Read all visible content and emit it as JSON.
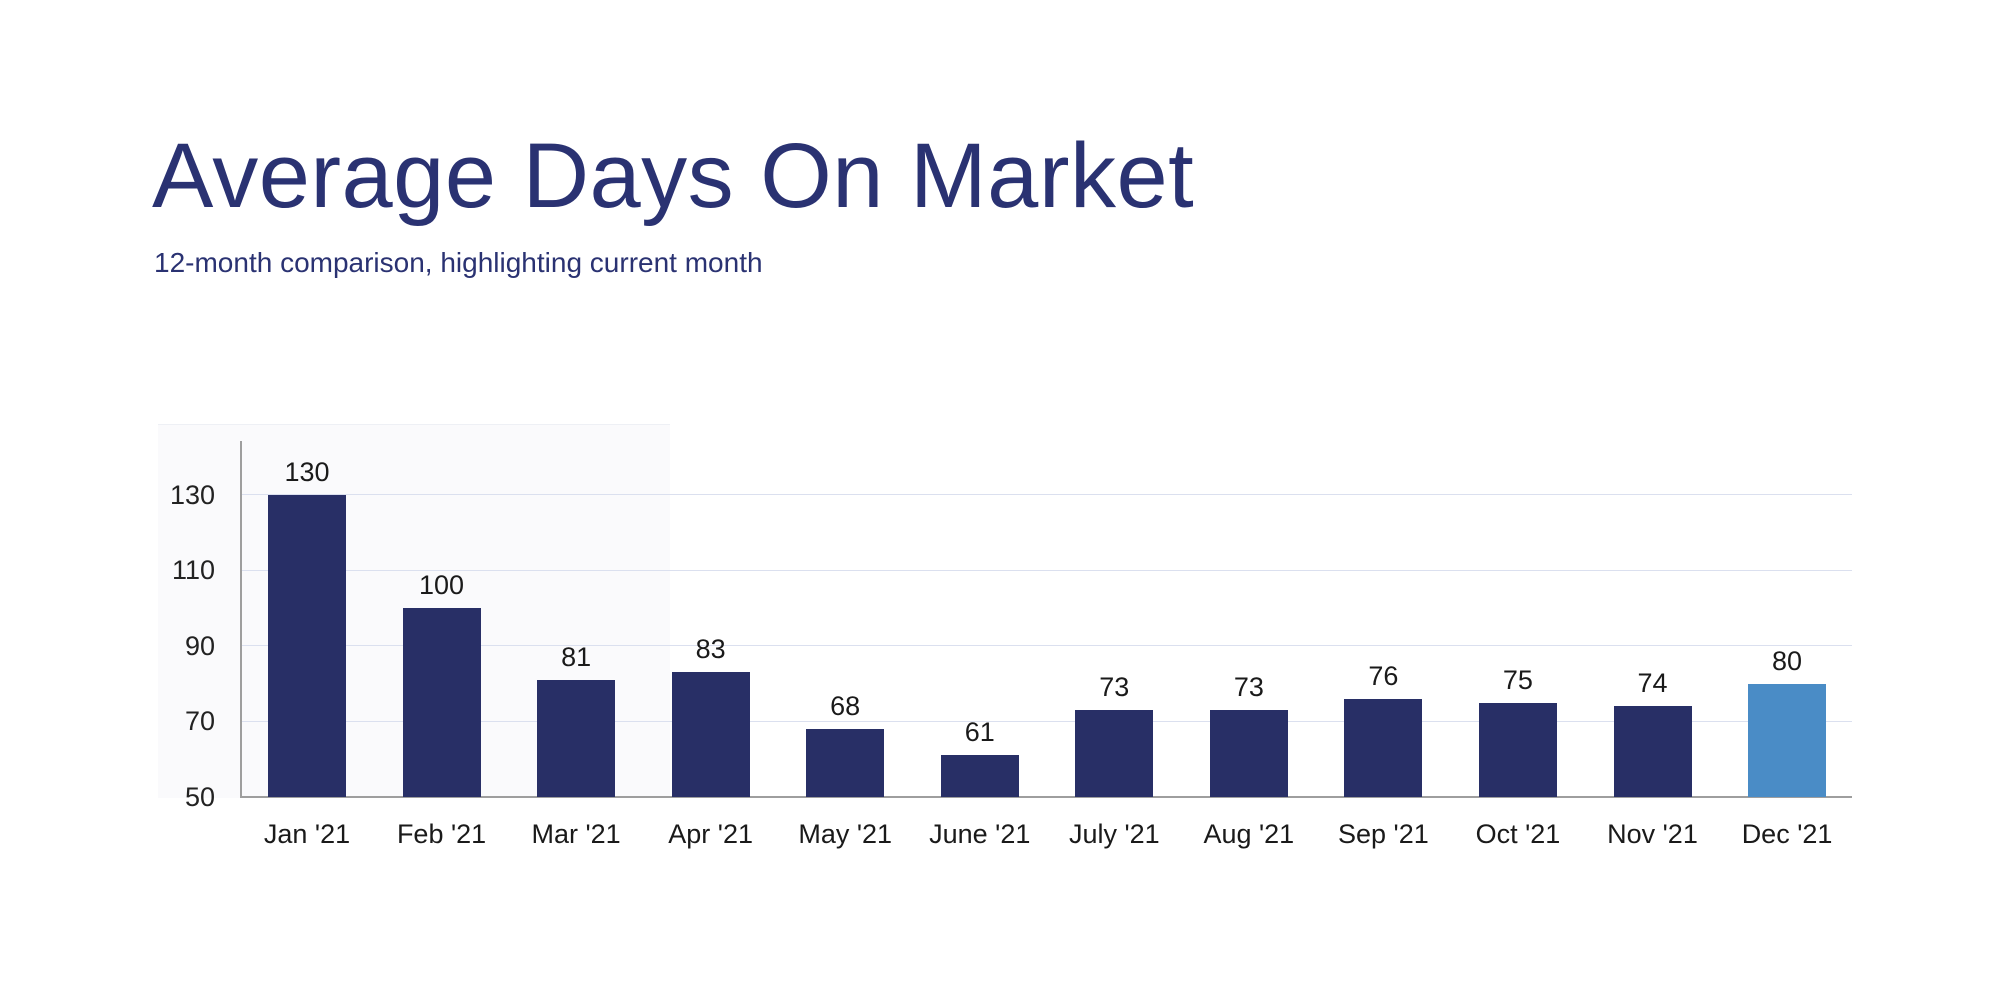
{
  "header": {
    "title": "Average Days On Market",
    "subtitle": "12-month comparison, highlighting current month"
  },
  "chart_data": {
    "type": "bar",
    "title": "Average Days On Market",
    "subtitle": "12-month comparison, highlighting current month",
    "categories": [
      "Jan '21",
      "Feb '21",
      "Mar '21",
      "Apr '21",
      "May '21",
      "June '21",
      "July '21",
      "Aug '21",
      "Sep '21",
      "Oct '21",
      "Nov '21",
      "Dec '21"
    ],
    "values": [
      130,
      100,
      81,
      83,
      68,
      61,
      73,
      73,
      76,
      75,
      74,
      80
    ],
    "show_value_labels": true,
    "highlight_index": 11,
    "highlight_meaning": "current month",
    "y_ticks": [
      50,
      70,
      90,
      110,
      130
    ],
    "ylim": [
      50,
      144
    ],
    "grid": true,
    "legend": false,
    "colors": {
      "bar": "#282F66",
      "highlight_bar": "#4A8CC6",
      "title_text": "#2A3272",
      "gridline": "#dbe0ef",
      "axis_line": "#9e9e9e",
      "label_text": "#1a1a1a"
    }
  }
}
